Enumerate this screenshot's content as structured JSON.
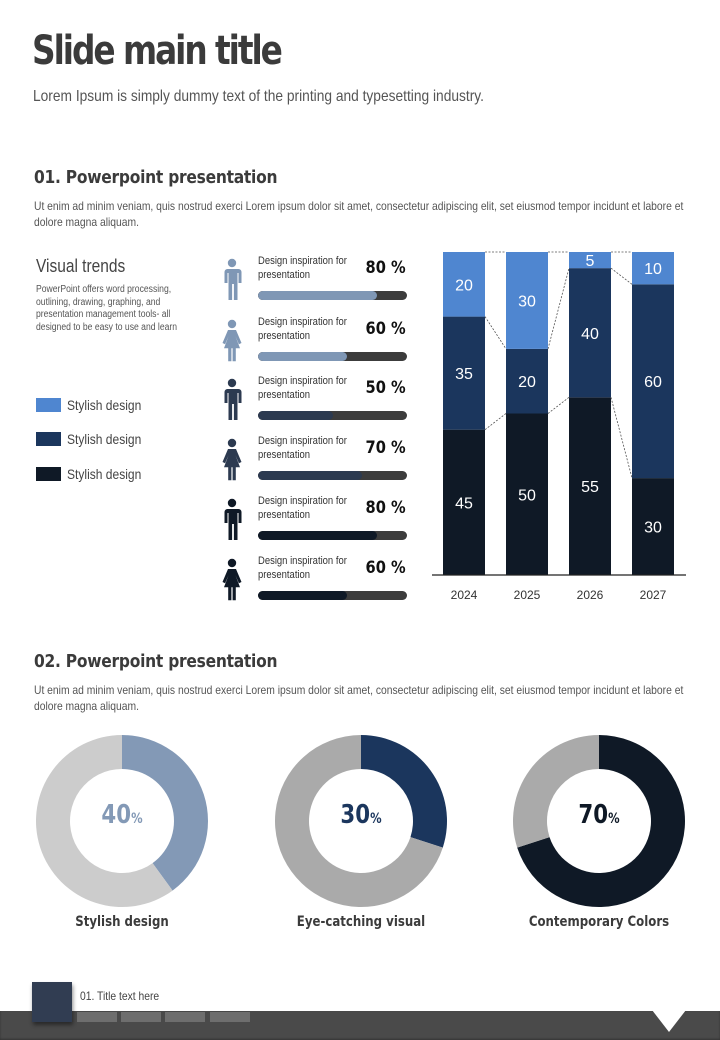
{
  "header": {
    "title": "Slide main title",
    "subtitle": "Lorem Ipsum is simply dummy text of the printing and typesetting industry."
  },
  "section1": {
    "title": "01. Powerpoint presentation",
    "description": "Ut enim ad minim veniam, quis nostrud exerci  Lorem ipsum dolor sit amet, consectetur adipiscing elit, set eiusmod tempor incidunt et labore et dolore magna aliquam.",
    "visual_trends": {
      "title": "Visual trends",
      "description": "PowerPoint offers word processing, outlining, drawing, graphing, and presentation management tools- all designed to be easy to use and learn"
    },
    "legend": [
      {
        "label": "Stylish design",
        "color": "#4f86d0"
      },
      {
        "label": "Stylish design",
        "color": "#1b365d"
      },
      {
        "label": "Stylish design",
        "color": "#0f1926"
      }
    ],
    "progress": [
      {
        "icon": "male-icon",
        "label": "Design inspiration for presentation",
        "value": 80,
        "value_label": "80 %",
        "color": "#7f97b5"
      },
      {
        "icon": "female-icon",
        "label": "Design inspiration for presentation",
        "value": 60,
        "value_label": "60 %",
        "color": "#7f97b5"
      },
      {
        "icon": "male-icon",
        "label": "Design inspiration for presentation",
        "value": 50,
        "value_label": "50 %",
        "color": "#2c3a50"
      },
      {
        "icon": "female-icon",
        "label": "Design inspiration for presentation",
        "value": 70,
        "value_label": "70 %",
        "color": "#2c3a50"
      },
      {
        "icon": "male-icon",
        "label": "Design inspiration for presentation",
        "value": 80,
        "value_label": "80 %",
        "color": "#0f1926"
      },
      {
        "icon": "female-icon",
        "label": "Design inspiration for presentation",
        "value": 60,
        "value_label": "60 %",
        "color": "#0f1926"
      }
    ]
  },
  "section2": {
    "title": "02. Powerpoint presentation",
    "description": "Ut enim ad minim veniam, quis nostrud exerci  Lorem ipsum dolor sit amet, consectetur adipiscing elit, set eiusmod tempor incidunt et labore et dolore magna aliquam.",
    "donuts": [
      {
        "value": 40,
        "value_text": "40",
        "unit": "%",
        "label": "Stylish design",
        "color": "#8399b6",
        "rest_color": "#cccccc",
        "text_color": "#8399b6"
      },
      {
        "value": 30,
        "value_text": "30",
        "unit": "%",
        "label": "Eye-catching visual",
        "color": "#1b365d",
        "rest_color": "#aaaaaa",
        "text_color": "#1b365d"
      },
      {
        "value": 70,
        "value_text": "70",
        "unit": "%",
        "label": "Contemporary Colors",
        "color": "#0f1926",
        "rest_color": "#aaaaaa",
        "text_color": "#0f1926"
      }
    ]
  },
  "footer": {
    "title": "01. Title text here"
  },
  "chart_data": [
    {
      "type": "bar",
      "stacked": true,
      "percent_stacked": true,
      "categories": [
        "2024",
        "2025",
        "2026",
        "2027"
      ],
      "series": [
        {
          "name": "Stylish design (bottom)",
          "color": "#0f1926",
          "values": [
            45,
            50,
            55,
            30
          ]
        },
        {
          "name": "Stylish design (middle)",
          "color": "#1b365d",
          "values": [
            35,
            20,
            40,
            60
          ]
        },
        {
          "name": "Stylish design (top)",
          "color": "#4f86d0",
          "values": [
            20,
            30,
            5,
            10
          ]
        }
      ],
      "ylim": [
        0,
        100
      ],
      "series_lines": true,
      "data_labels": true,
      "title": "",
      "xlabel": "",
      "ylabel": ""
    },
    {
      "type": "pie",
      "donut": true,
      "title": "Stylish design",
      "slices": [
        {
          "label": "value",
          "value": 40
        },
        {
          "label": "rest",
          "value": 60
        }
      ]
    },
    {
      "type": "pie",
      "donut": true,
      "title": "Eye-catching visual",
      "slices": [
        {
          "label": "value",
          "value": 30
        },
        {
          "label": "rest",
          "value": 70
        }
      ]
    },
    {
      "type": "pie",
      "donut": true,
      "title": "Contemporary Colors",
      "slices": [
        {
          "label": "value",
          "value": 70
        },
        {
          "label": "rest",
          "value": 30
        }
      ]
    }
  ]
}
